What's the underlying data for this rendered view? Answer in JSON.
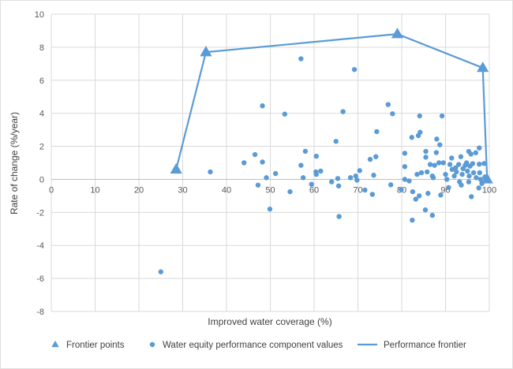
{
  "chart_data": {
    "type": "scatter",
    "title": "",
    "xlabel": "Improved water coverage (%)",
    "ylabel": "Rate of change (%/year)",
    "xlim": [
      0,
      100
    ],
    "ylim": [
      -8,
      10
    ],
    "xticks": [
      "0",
      "10",
      "20",
      "30",
      "40",
      "50",
      "60",
      "70",
      "80",
      "90",
      "100"
    ],
    "yticks": [
      "-8",
      "-6",
      "-4",
      "-2",
      "0",
      "2",
      "4",
      "6",
      "8",
      "10"
    ],
    "grid": true,
    "legend_position": "bottom",
    "color": "#5b9bd5",
    "series": [
      {
        "name": "Frontier points",
        "marker": "triangle",
        "points": [
          [
            28.5,
            0.6
          ],
          [
            35.3,
            7.7
          ],
          [
            79,
            8.8
          ],
          [
            98.5,
            6.75
          ],
          [
            99.5,
            0
          ]
        ]
      },
      {
        "name": "Water equity performance component values",
        "marker": "circle",
        "points": [
          [
            25,
            -5.6
          ],
          [
            36.3,
            0.45
          ],
          [
            44,
            1.0
          ],
          [
            46.5,
            1.5
          ],
          [
            47.2,
            -0.35
          ],
          [
            48.2,
            4.45
          ],
          [
            48.2,
            1.05
          ],
          [
            49.1,
            0.1
          ],
          [
            49.9,
            -1.8
          ],
          [
            51.2,
            0.35
          ],
          [
            53.3,
            3.95
          ],
          [
            54.5,
            -0.75
          ],
          [
            57,
            7.3
          ],
          [
            57,
            0.85
          ],
          [
            57.5,
            0.1
          ],
          [
            58,
            1.7
          ],
          [
            59.4,
            -0.3
          ],
          [
            60.4,
            0.45
          ],
          [
            60.5,
            1.4
          ],
          [
            60.5,
            0.3
          ],
          [
            61.5,
            0.5
          ],
          [
            64,
            -0.15
          ],
          [
            65,
            2.3
          ],
          [
            65.4,
            0.05
          ],
          [
            65.6,
            -0.4
          ],
          [
            65.7,
            -2.25
          ],
          [
            66.6,
            4.1
          ],
          [
            68.3,
            0.1
          ],
          [
            69.2,
            6.65
          ],
          [
            69.5,
            0.2
          ],
          [
            69.8,
            -0.05
          ],
          [
            70.4,
            0.53
          ],
          [
            71.6,
            -0.65
          ],
          [
            72.8,
            1.21
          ],
          [
            73.3,
            -0.91
          ],
          [
            73.6,
            0.25
          ],
          [
            74.1,
            1.37
          ],
          [
            74.3,
            2.89
          ],
          [
            76.9,
            4.53
          ],
          [
            77.5,
            -0.33
          ],
          [
            77.9,
            3.97
          ],
          [
            79.9,
            -0.62
          ],
          [
            80.7,
            1.58
          ],
          [
            80.7,
            0.77
          ],
          [
            80.7,
            0.0
          ],
          [
            81.7,
            -0.1
          ],
          [
            82.3,
            2.54
          ],
          [
            82.4,
            -2.47
          ],
          [
            82.5,
            -0.75
          ],
          [
            83.2,
            -1.2
          ],
          [
            83.5,
            0.3
          ],
          [
            83.8,
            2.65
          ],
          [
            84.0,
            -1.0
          ],
          [
            84.1,
            3.84
          ],
          [
            84.2,
            2.85
          ],
          [
            84.5,
            0.4
          ],
          [
            85.4,
            -1.85
          ],
          [
            85.5,
            1.69
          ],
          [
            85.5,
            1.34
          ],
          [
            85.8,
            0.45
          ],
          [
            86,
            -0.85
          ],
          [
            86.5,
            0.9
          ],
          [
            87,
            -2.18
          ],
          [
            87,
            0.2
          ],
          [
            87.2,
            0.1
          ],
          [
            87.5,
            0.85
          ],
          [
            87.9,
            1.62
          ],
          [
            88,
            2.44
          ],
          [
            88.5,
            1.0
          ],
          [
            88.7,
            2.09
          ],
          [
            88.9,
            -0.95
          ],
          [
            89.2,
            3.84
          ],
          [
            89.5,
            1.0
          ],
          [
            90,
            0.3
          ],
          [
            90.3,
            0.0
          ],
          [
            90.7,
            -0.5
          ],
          [
            91,
            0.9
          ],
          [
            91.4,
            1.29
          ],
          [
            91.5,
            0.6
          ],
          [
            92,
            0.2
          ],
          [
            92.3,
            0.7
          ],
          [
            92.5,
            0.45
          ],
          [
            93,
            0.9
          ],
          [
            93.2,
            -0.15
          ],
          [
            93.5,
            1.37
          ],
          [
            93.6,
            -0.35
          ],
          [
            93.8,
            0.3
          ],
          [
            94,
            0.65
          ],
          [
            94.5,
            0.85
          ],
          [
            94.8,
            1.0
          ],
          [
            95,
            0.5
          ],
          [
            95.3,
            1.69
          ],
          [
            95.3,
            -0.16
          ],
          [
            95.4,
            0.2
          ],
          [
            95.6,
            0.8
          ],
          [
            95.8,
            1.53
          ],
          [
            95.9,
            -1.05
          ],
          [
            96.2,
            0.95
          ],
          [
            96.4,
            0.4
          ],
          [
            96.9,
            1.61
          ],
          [
            97,
            0.1
          ],
          [
            97.6,
            -0.52
          ],
          [
            97.7,
            0.92
          ],
          [
            97.7,
            1.9
          ],
          [
            97.8,
            0.4
          ],
          [
            98,
            0.0
          ],
          [
            98.3,
            -0.25
          ],
          [
            98.8,
            0.96
          ],
          [
            99,
            0.15
          ]
        ]
      },
      {
        "name": "Performance frontier",
        "marker": "line",
        "points": [
          [
            28.5,
            0.6
          ],
          [
            35.3,
            7.7
          ],
          [
            79,
            8.8
          ],
          [
            98.5,
            6.75
          ],
          [
            99.5,
            0
          ]
        ]
      }
    ]
  }
}
